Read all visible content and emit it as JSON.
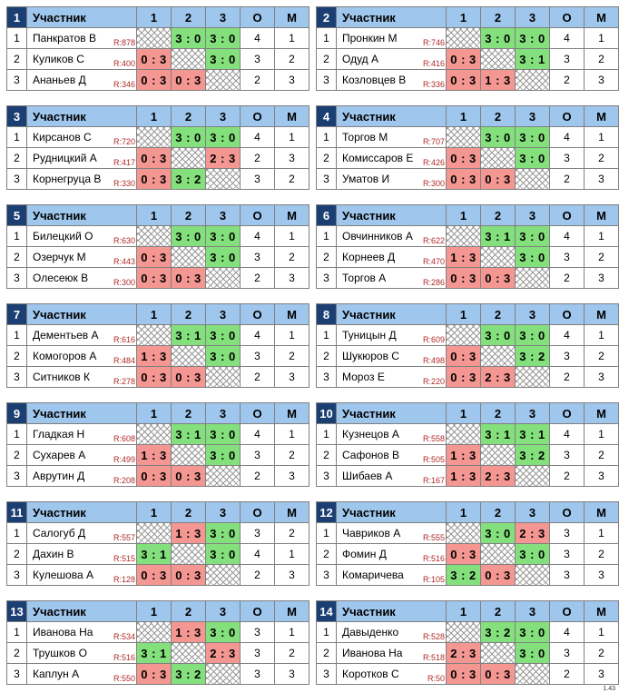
{
  "header": {
    "participant": "Участник",
    "cols": [
      "1",
      "2",
      "3"
    ],
    "points": "О",
    "place": "М"
  },
  "groups": [
    {
      "num": "1",
      "players": [
        {
          "idx": "1",
          "name": "Панкратов В",
          "rating": "R:878",
          "r": [
            "",
            "3 : 0",
            "3 : 0"
          ],
          "pts": "4",
          "place": "1"
        },
        {
          "idx": "2",
          "name": "Куликов С",
          "rating": "R:400",
          "r": [
            "0 : 3",
            "",
            "3 : 0"
          ],
          "pts": "3",
          "place": "2"
        },
        {
          "idx": "3",
          "name": "Ананьев Д",
          "rating": "R:346",
          "r": [
            "0 : 3",
            "0 : 3",
            ""
          ],
          "pts": "2",
          "place": "3"
        }
      ]
    },
    {
      "num": "2",
      "players": [
        {
          "idx": "1",
          "name": "Пронкин М",
          "rating": "R:746",
          "r": [
            "",
            "3 : 0",
            "3 : 0"
          ],
          "pts": "4",
          "place": "1"
        },
        {
          "idx": "2",
          "name": "Одуд А",
          "rating": "R:416",
          "r": [
            "0 : 3",
            "",
            "3 : 1"
          ],
          "pts": "3",
          "place": "2"
        },
        {
          "idx": "3",
          "name": "Козловцев В",
          "rating": "R:336",
          "r": [
            "0 : 3",
            "1 : 3",
            ""
          ],
          "pts": "2",
          "place": "3"
        }
      ]
    },
    {
      "num": "3",
      "players": [
        {
          "idx": "1",
          "name": "Кирсанов С",
          "rating": "R:720",
          "r": [
            "",
            "3 : 0",
            "3 : 0"
          ],
          "pts": "4",
          "place": "1"
        },
        {
          "idx": "2",
          "name": "Рудницкий А",
          "rating": "R:417",
          "r": [
            "0 : 3",
            "",
            "2 : 3"
          ],
          "pts": "2",
          "place": "3"
        },
        {
          "idx": "3",
          "name": "Корнегруца В",
          "rating": "R:330",
          "r": [
            "0 : 3",
            "3 : 2",
            ""
          ],
          "pts": "3",
          "place": "2"
        }
      ]
    },
    {
      "num": "4",
      "players": [
        {
          "idx": "1",
          "name": "Торгов М",
          "rating": "R:707",
          "r": [
            "",
            "3 : 0",
            "3 : 0"
          ],
          "pts": "4",
          "place": "1"
        },
        {
          "idx": "2",
          "name": "Комиссаров Е",
          "rating": "R:426",
          "r": [
            "0 : 3",
            "",
            "3 : 0"
          ],
          "pts": "3",
          "place": "2"
        },
        {
          "idx": "3",
          "name": "Уматов И",
          "rating": "R:300",
          "r": [
            "0 : 3",
            "0 : 3",
            ""
          ],
          "pts": "2",
          "place": "3"
        }
      ]
    },
    {
      "num": "5",
      "players": [
        {
          "idx": "1",
          "name": "Билецкий О",
          "rating": "R:630",
          "r": [
            "",
            "3 : 0",
            "3 : 0"
          ],
          "pts": "4",
          "place": "1"
        },
        {
          "idx": "2",
          "name": "Озерчук М",
          "rating": "R:443",
          "r": [
            "0 : 3",
            "",
            "3 : 0"
          ],
          "pts": "3",
          "place": "2"
        },
        {
          "idx": "3",
          "name": "Олесеюк В",
          "rating": "R:300",
          "r": [
            "0 : 3",
            "0 : 3",
            ""
          ],
          "pts": "2",
          "place": "3"
        }
      ]
    },
    {
      "num": "6",
      "players": [
        {
          "idx": "1",
          "name": "Овчинников А",
          "rating": "R:622",
          "r": [
            "",
            "3 : 1",
            "3 : 0"
          ],
          "pts": "4",
          "place": "1"
        },
        {
          "idx": "2",
          "name": "Корнеев Д",
          "rating": "R:470",
          "r": [
            "1 : 3",
            "",
            "3 : 0"
          ],
          "pts": "3",
          "place": "2"
        },
        {
          "idx": "3",
          "name": "Торгов А",
          "rating": "R:286",
          "r": [
            "0 : 3",
            "0 : 3",
            ""
          ],
          "pts": "2",
          "place": "3"
        }
      ]
    },
    {
      "num": "7",
      "players": [
        {
          "idx": "1",
          "name": "Дементьев А",
          "rating": "R:616",
          "r": [
            "",
            "3 : 1",
            "3 : 0"
          ],
          "pts": "4",
          "place": "1"
        },
        {
          "idx": "2",
          "name": "Комогоров А",
          "rating": "R:484",
          "r": [
            "1 : 3",
            "",
            "3 : 0"
          ],
          "pts": "3",
          "place": "2"
        },
        {
          "idx": "3",
          "name": "Ситников К",
          "rating": "R:278",
          "r": [
            "0 : 3",
            "0 : 3",
            ""
          ],
          "pts": "2",
          "place": "3"
        }
      ]
    },
    {
      "num": "8",
      "players": [
        {
          "idx": "1",
          "name": "Туницын Д",
          "rating": "R:609",
          "r": [
            "",
            "3 : 0",
            "3 : 0"
          ],
          "pts": "4",
          "place": "1"
        },
        {
          "idx": "2",
          "name": "Шукюров С",
          "rating": "R:498",
          "r": [
            "0 : 3",
            "",
            "3 : 2"
          ],
          "pts": "3",
          "place": "2"
        },
        {
          "idx": "3",
          "name": "Мороз Е",
          "rating": "R:220",
          "r": [
            "0 : 3",
            "2 : 3",
            ""
          ],
          "pts": "2",
          "place": "3"
        }
      ]
    },
    {
      "num": "9",
      "players": [
        {
          "idx": "1",
          "name": "Гладкая Н",
          "rating": "R:608",
          "r": [
            "",
            "3 : 1",
            "3 : 0"
          ],
          "pts": "4",
          "place": "1"
        },
        {
          "idx": "2",
          "name": "Сухарев А",
          "rating": "R:499",
          "r": [
            "1 : 3",
            "",
            "3 : 0"
          ],
          "pts": "3",
          "place": "2"
        },
        {
          "idx": "3",
          "name": "Аврутин Д",
          "rating": "R:208",
          "r": [
            "0 : 3",
            "0 : 3",
            ""
          ],
          "pts": "2",
          "place": "3"
        }
      ]
    },
    {
      "num": "10",
      "players": [
        {
          "idx": "1",
          "name": "Кузнецов А",
          "rating": "R:558",
          "r": [
            "",
            "3 : 1",
            "3 : 1"
          ],
          "pts": "4",
          "place": "1"
        },
        {
          "idx": "2",
          "name": "Сафонов В",
          "rating": "R:505",
          "r": [
            "1 : 3",
            "",
            "3 : 2"
          ],
          "pts": "3",
          "place": "2"
        },
        {
          "idx": "3",
          "name": "Шибаев А",
          "rating": "R:167",
          "r": [
            "1 : 3",
            "2 : 3",
            ""
          ],
          "pts": "2",
          "place": "3"
        }
      ]
    },
    {
      "num": "11",
      "players": [
        {
          "idx": "1",
          "name": "Салогуб Д",
          "rating": "R:557",
          "r": [
            "",
            "1 : 3",
            "3 : 0"
          ],
          "pts": "3",
          "place": "2"
        },
        {
          "idx": "2",
          "name": "Дахин В",
          "rating": "R:515",
          "r": [
            "3 : 1",
            "",
            "3 : 0"
          ],
          "pts": "4",
          "place": "1"
        },
        {
          "idx": "3",
          "name": "Кулешова А",
          "rating": "R:128",
          "r": [
            "0 : 3",
            "0 : 3",
            ""
          ],
          "pts": "2",
          "place": "3"
        }
      ]
    },
    {
      "num": "12",
      "players": [
        {
          "idx": "1",
          "name": "Чавриков А",
          "rating": "R:555",
          "r": [
            "",
            "3 : 0",
            "2 : 3"
          ],
          "pts": "3",
          "place": "1"
        },
        {
          "idx": "2",
          "name": "Фомин Д",
          "rating": "R:516",
          "r": [
            "0 : 3",
            "",
            "3 : 0"
          ],
          "pts": "3",
          "place": "2"
        },
        {
          "idx": "3",
          "name": "Комаричева",
          "rating": "R:105",
          "r": [
            "3 : 2",
            "0 : 3",
            ""
          ],
          "pts": "3",
          "place": "3"
        }
      ]
    },
    {
      "num": "13",
      "players": [
        {
          "idx": "1",
          "name": "Иванова На",
          "rating": "R:534",
          "r": [
            "",
            "1 : 3",
            "3 : 0"
          ],
          "pts": "3",
          "place": "1"
        },
        {
          "idx": "2",
          "name": "Трушков О",
          "rating": "R:516",
          "r": [
            "3 : 1",
            "",
            "2 : 3"
          ],
          "pts": "3",
          "place": "2"
        },
        {
          "idx": "3",
          "name": "Каплун А",
          "rating": "R:550",
          "r": [
            "0 : 3",
            "3 : 2",
            ""
          ],
          "pts": "3",
          "place": "3"
        }
      ]
    },
    {
      "num": "14",
      "players": [
        {
          "idx": "1",
          "name": "Давыденко",
          "rating": "R:528",
          "r": [
            "",
            "3 : 2",
            "3 : 0"
          ],
          "pts": "4",
          "place": "1"
        },
        {
          "idx": "2",
          "name": "Иванова На",
          "rating": "R:518",
          "r": [
            "2 : 3",
            "",
            "3 : 0"
          ],
          "pts": "3",
          "place": "2"
        },
        {
          "idx": "3",
          "name": "Коротков С",
          "rating": "R:50",
          "r": [
            "0 : 3",
            "0 : 3",
            ""
          ],
          "pts": "2",
          "place": "3"
        }
      ]
    }
  ],
  "footer": {
    "version": "1.43"
  },
  "colors": {
    "header_bg": "#9fc6ec",
    "group_num_bg": "#1c3f73",
    "win": "#84e07c",
    "loss": "#f49691",
    "rating_text": "#b02a2a"
  }
}
